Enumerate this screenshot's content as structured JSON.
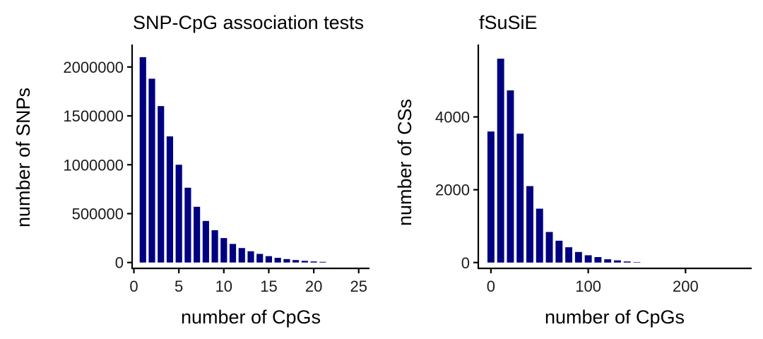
{
  "chart_data": [
    {
      "type": "bar",
      "title": "SNP-CpG association tests",
      "xlabel": "number of CpGs",
      "ylabel": "number of SNPs",
      "xlim": [
        -0.2,
        26.2
      ],
      "ylim": [
        -60000,
        2230000
      ],
      "xticks": [
        0,
        5,
        10,
        15,
        20,
        25
      ],
      "xtick_labels": [
        "0",
        "5",
        "10",
        "15",
        "20",
        "25"
      ],
      "yticks": [
        0,
        500000,
        1000000,
        1500000,
        2000000
      ],
      "ytick_labels": [
        "0",
        "500000",
        "1000000",
        "1500000",
        "2000000"
      ],
      "bar_width": 0.72,
      "bar_color": "#000080",
      "x": [
        1,
        2,
        3,
        4,
        5,
        6,
        7,
        8,
        9,
        10,
        11,
        12,
        13,
        14,
        15,
        16,
        17,
        18,
        19,
        20,
        21
      ],
      "values": [
        2100000,
        1880000,
        1600000,
        1290000,
        1000000,
        765000,
        570000,
        425000,
        330000,
        250000,
        190000,
        148000,
        115000,
        88000,
        65000,
        48000,
        35000,
        25000,
        17000,
        11000,
        7000
      ]
    },
    {
      "type": "bar",
      "title": "fSuSiE",
      "xlabel": "number of CpGs",
      "ylabel": "number of CSs",
      "xlim": [
        -13,
        268
      ],
      "ylim": [
        -160,
        5990
      ],
      "xticks": [
        0,
        100,
        200
      ],
      "xtick_labels": [
        "0",
        "100",
        "200"
      ],
      "yticks": [
        0,
        2000,
        4000
      ],
      "ytick_labels": [
        "0",
        "2000",
        "4000"
      ],
      "bar_width": 7.2,
      "bar_color": "#000080",
      "x": [
        0,
        10,
        20,
        30,
        40,
        50,
        60,
        70,
        80,
        90,
        100,
        110,
        120,
        130,
        140,
        150
      ],
      "values": [
        3600,
        5600,
        4730,
        3540,
        2100,
        1480,
        840,
        600,
        420,
        290,
        200,
        150,
        90,
        60,
        30,
        12
      ]
    }
  ]
}
